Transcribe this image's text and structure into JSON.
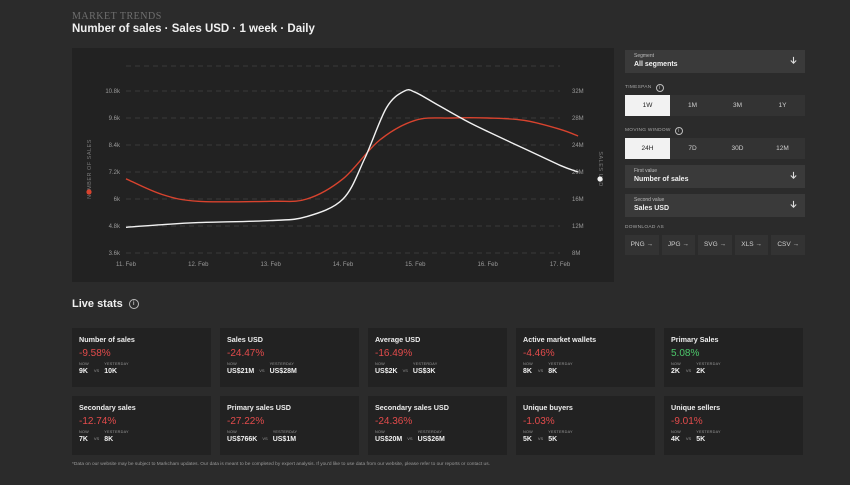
{
  "header": {
    "eyebrow": "MARKET TRENDS",
    "title": "Number of sales · Sales USD · 1 week · Daily"
  },
  "chart_data": {
    "type": "line",
    "x": [
      "11. Feb",
      "12. Feb",
      "13. Feb",
      "14. Feb",
      "15. Feb",
      "16. Feb",
      "17. Feb"
    ],
    "left_axis": {
      "label": "NUMBER OF SALES",
      "ticks": [
        "10.8k",
        "9.6k",
        "8.4k",
        "7.2k",
        "6k",
        "4.8k",
        "3.6k"
      ],
      "ylim": [
        3600,
        10800
      ]
    },
    "right_axis": {
      "label": "SALES USD",
      "ticks": [
        "32M",
        "28M",
        "24M",
        "20M",
        "16M",
        "12M",
        "8M"
      ],
      "ylim": [
        8000000,
        32000000
      ]
    },
    "series": [
      {
        "name": "NUMBER OF SALES",
        "axis": "left",
        "color": "#d8432e",
        "x": [
          0,
          0.5,
          1,
          2,
          2.5,
          3,
          3.5,
          4,
          4.5,
          5,
          5.5,
          6,
          6.25
        ],
        "values": [
          6900,
          6200,
          5900,
          5900,
          6000,
          6900,
          8600,
          9500,
          9600,
          9600,
          9500,
          9100,
          8800
        ]
      },
      {
        "name": "SALES USD",
        "axis": "right",
        "color": "#f2f2f2",
        "x": [
          0,
          0.5,
          1,
          2,
          2.5,
          3,
          3.3,
          3.6,
          3.85,
          4,
          4.3,
          4.7,
          5,
          5.5,
          6,
          6.25
        ],
        "values": [
          11800000,
          12200000,
          12500000,
          12800000,
          13400000,
          16000000,
          22000000,
          29500000,
          32000000,
          31800000,
          30000000,
          27600000,
          26000000,
          23500000,
          21000000,
          20000000
        ]
      }
    ],
    "grid": true
  },
  "controls": {
    "segment": {
      "label": "Segment",
      "value": "All segments"
    },
    "timespan": {
      "label": "TIMESPAN",
      "options": [
        "1W",
        "1M",
        "3M",
        "1Y"
      ],
      "selected": "1W"
    },
    "moving_window": {
      "label": "MOVING WINDOW",
      "options": [
        "24H",
        "7D",
        "30D",
        "12M"
      ],
      "selected": "24H"
    },
    "first_value": {
      "label": "First value",
      "value": "Number of sales"
    },
    "second_value": {
      "label": "Second value",
      "value": "Sales USD"
    },
    "download": {
      "label": "DOWNLOAD AS",
      "options": [
        "PNG",
        "JPG",
        "SVG",
        "XLS",
        "CSV"
      ]
    }
  },
  "live_stats": {
    "title": "Live stats",
    "now_label": "NOW",
    "yesterday_label": "YESTERDAY",
    "vs_label": "VS",
    "cards": [
      {
        "name": "Number of sales",
        "change": "-9.58%",
        "trend": "neg",
        "now": "9K",
        "yesterday": "10K"
      },
      {
        "name": "Sales USD",
        "change": "-24.47%",
        "trend": "neg",
        "now": "US$21M",
        "yesterday": "US$28M"
      },
      {
        "name": "Average USD",
        "change": "-16.49%",
        "trend": "neg",
        "now": "US$2K",
        "yesterday": "US$3K"
      },
      {
        "name": "Active market wallets",
        "change": "-4.46%",
        "trend": "neg",
        "now": "8K",
        "yesterday": "8K"
      },
      {
        "name": "Primary Sales",
        "change": "5.08%",
        "trend": "pos",
        "now": "2K",
        "yesterday": "2K"
      },
      {
        "name": "Secondary sales",
        "change": "-12.74%",
        "trend": "neg",
        "now": "7K",
        "yesterday": "8K"
      },
      {
        "name": "Primary sales USD",
        "change": "-27.22%",
        "trend": "neg",
        "now": "US$766K",
        "yesterday": "US$1M"
      },
      {
        "name": "Secondary sales USD",
        "change": "-24.36%",
        "trend": "neg",
        "now": "US$20M",
        "yesterday": "US$26M"
      },
      {
        "name": "Unique buyers",
        "change": "-1.03%",
        "trend": "neg",
        "now": "5K",
        "yesterday": "5K"
      },
      {
        "name": "Unique sellers",
        "change": "-9.01%",
        "trend": "neg",
        "now": "4K",
        "yesterday": "5K"
      }
    ]
  },
  "footer": {
    "disclaimer": "*Data on our website may be subject to Markcham updates. Our data is meant to be completed by expert analysis. If you'd like to use data from our website, please refer to our reports or contact us."
  },
  "icons": {
    "chevron": "chevron-down-icon",
    "arrow": "arrow-right-icon",
    "info": "info-icon"
  }
}
